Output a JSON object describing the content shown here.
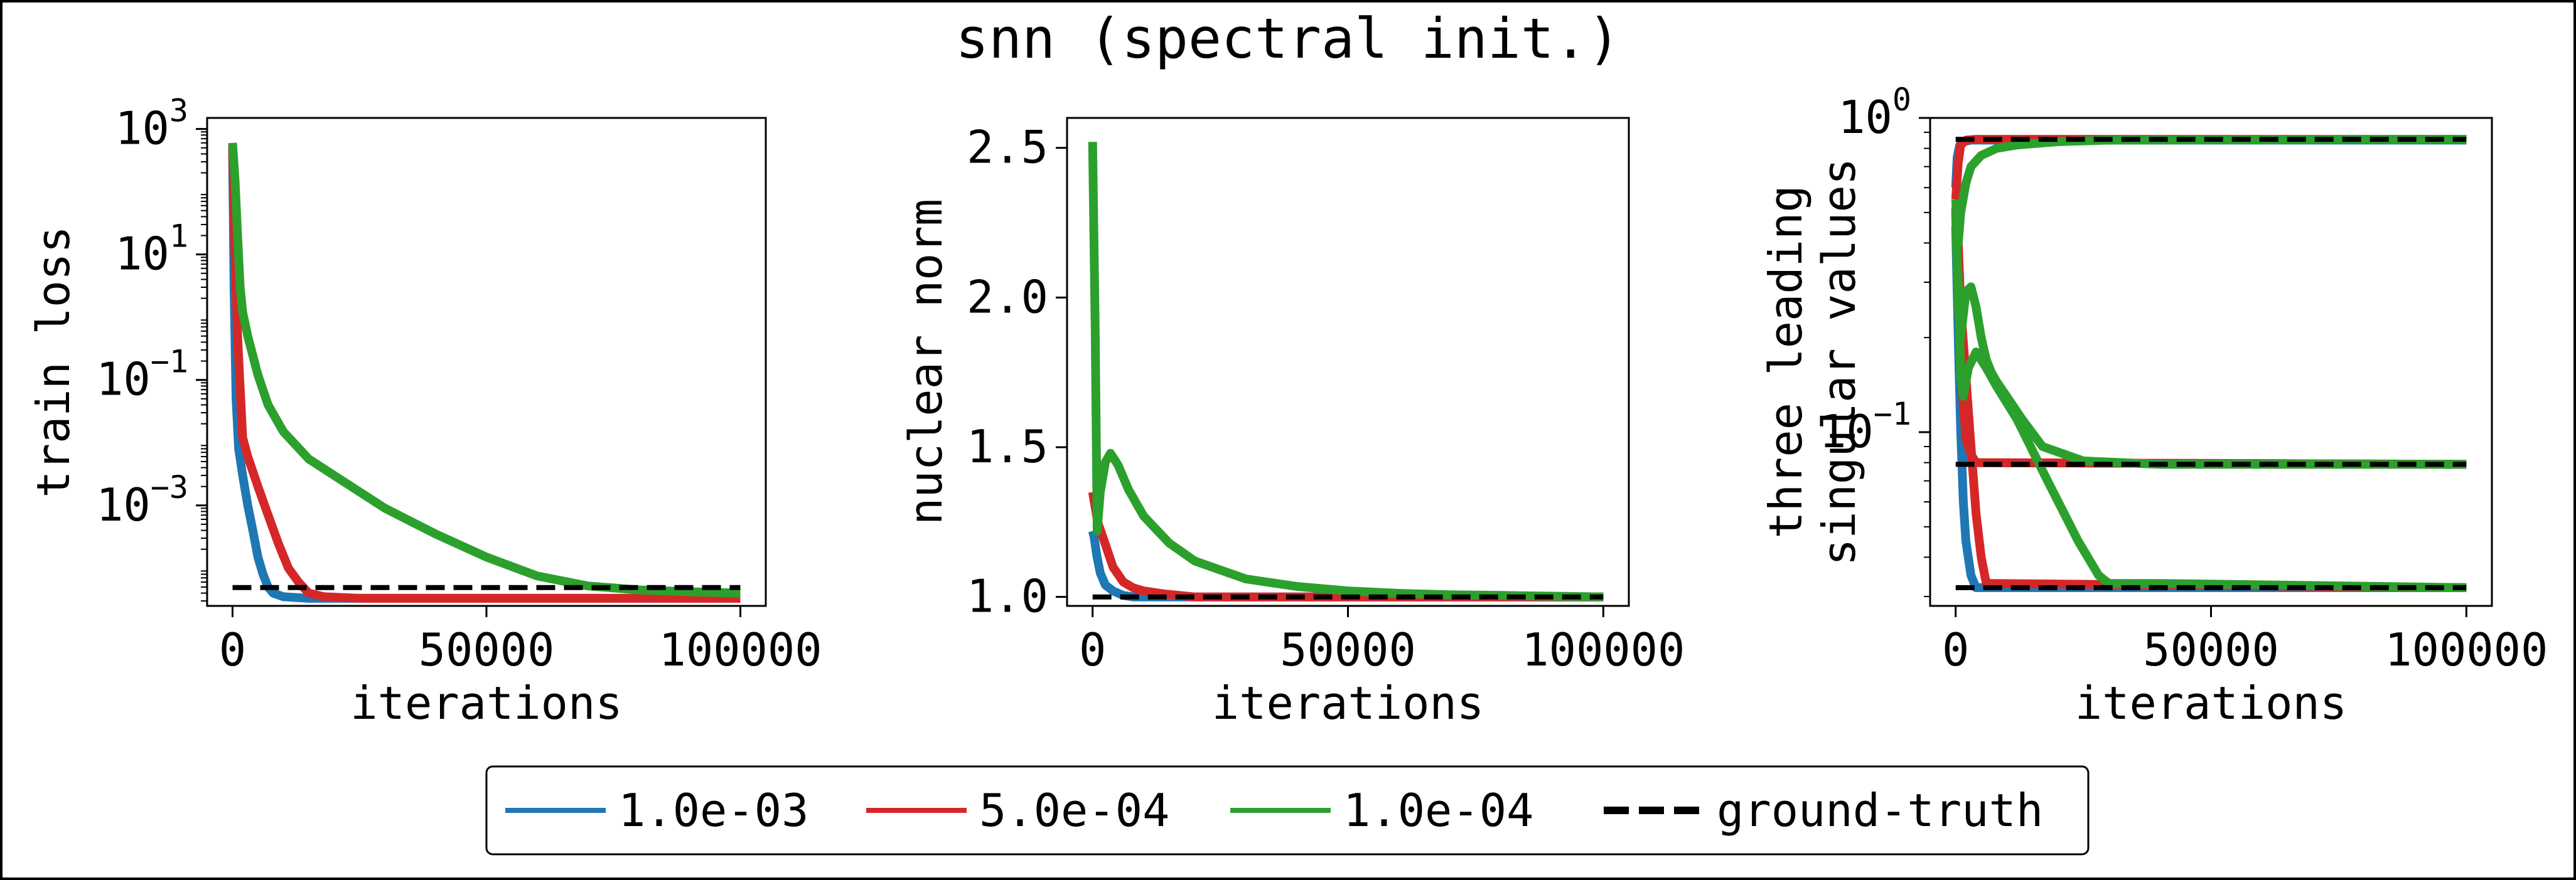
{
  "figure": {
    "title": "snn (spectral init.)"
  },
  "colors": {
    "lr_1e-3": "#1f77b4",
    "lr_5e-4": "#d62728",
    "lr_1e-4": "#2ca02c",
    "ground_truth": "#000000"
  },
  "legend": {
    "placement": "bottom-center",
    "entries": [
      {
        "label": "1.0e-03",
        "color": "#1f77b4",
        "style": "solid"
      },
      {
        "label": "5.0e-04",
        "color": "#d62728",
        "style": "solid"
      },
      {
        "label": "1.0e-04",
        "color": "#2ca02c",
        "style": "solid"
      },
      {
        "label": "ground-truth",
        "color": "#000000",
        "style": "dashed"
      }
    ]
  },
  "chart_data": [
    {
      "type": "line",
      "xlabel": "iterations",
      "ylabel": "train loss",
      "xlim": [
        -5000,
        105000
      ],
      "ylim": [
        2.5e-05,
        1500
      ],
      "yscale": "log",
      "xticks": [
        0,
        50000,
        100000
      ],
      "xticklabels": [
        "0",
        "50000",
        "100000"
      ],
      "yticks": [
        1000,
        10,
        0.1,
        0.001
      ],
      "yticklabels": [
        [
          "10",
          "3"
        ],
        [
          "10",
          "1"
        ],
        [
          "10",
          "−1"
        ],
        [
          "10",
          "−3"
        ]
      ],
      "grid": false,
      "series": [
        {
          "name": "1.0e-03",
          "color": "#1f77b4",
          "style": "solid",
          "x": [
            0,
            300,
            700,
            1200,
            2000,
            3000,
            4000,
            5000,
            6000,
            7000,
            8000,
            10000,
            15000,
            100000
          ],
          "y": [
            500,
            3,
            0.05,
            0.008,
            0.003,
            0.001,
            0.0004,
            0.00015,
            8e-05,
            5e-05,
            4e-05,
            3.5e-05,
            3.3e-05,
            3.3e-05
          ]
        },
        {
          "name": "5.0e-04",
          "color": "#d62728",
          "style": "solid",
          "x": [
            0,
            500,
            1000,
            2000,
            3000,
            5000,
            7000,
            9000,
            11000,
            13000,
            15000,
            18000,
            25000,
            100000
          ],
          "y": [
            550,
            10,
            0.5,
            0.012,
            0.006,
            0.002,
            0.0007,
            0.00025,
            0.0001,
            6e-05,
            4e-05,
            3.5e-05,
            3.3e-05,
            3.3e-05
          ]
        },
        {
          "name": "1.0e-04",
          "color": "#2ca02c",
          "style": "solid",
          "x": [
            0,
            500,
            1000,
            1500,
            2000,
            3000,
            5000,
            7000,
            10000,
            15000,
            20000,
            30000,
            40000,
            50000,
            60000,
            70000,
            80000,
            90000,
            100000
          ],
          "y": [
            600,
            150,
            20,
            3,
            1.2,
            0.5,
            0.12,
            0.04,
            0.015,
            0.0055,
            0.003,
            0.0009,
            0.00035,
            0.00015,
            7.5e-05,
            5.2e-05,
            4.5e-05,
            4.2e-05,
            4e-05
          ]
        },
        {
          "name": "ground-truth",
          "color": "#000000",
          "style": "dashed",
          "x": [
            0,
            100000
          ],
          "y": [
            4.9e-05,
            4.9e-05
          ]
        }
      ]
    },
    {
      "type": "line",
      "xlabel": "iterations",
      "ylabel": "nuclear norm",
      "xlim": [
        -5000,
        105000
      ],
      "ylim": [
        0.97,
        2.6
      ],
      "yscale": "linear",
      "xticks": [
        0,
        50000,
        100000
      ],
      "xticklabels": [
        "0",
        "50000",
        "100000"
      ],
      "yticks": [
        1.0,
        1.5,
        2.0,
        2.5
      ],
      "yticklabels": [
        "1.0",
        "1.5",
        "2.0",
        "2.5"
      ],
      "grid": false,
      "series": [
        {
          "name": "1.0e-03",
          "color": "#1f77b4",
          "style": "solid",
          "x": [
            0,
            300,
            800,
            1500,
            2500,
            4000,
            6000,
            8000,
            100000
          ],
          "y": [
            1.22,
            1.2,
            1.14,
            1.08,
            1.04,
            1.02,
            1.005,
            1.0,
            1.0
          ]
        },
        {
          "name": "5.0e-04",
          "color": "#d62728",
          "style": "solid",
          "x": [
            0,
            500,
            1000,
            2000,
            3000,
            4000,
            6000,
            8000,
            10000,
            14000,
            20000,
            100000
          ],
          "y": [
            1.35,
            1.3,
            1.25,
            1.2,
            1.15,
            1.1,
            1.05,
            1.03,
            1.02,
            1.01,
            1.0,
            1.0
          ]
        },
        {
          "name": "1.0e-04",
          "color": "#2ca02c",
          "style": "solid",
          "x": [
            0,
            500,
            900,
            1500,
            2500,
            3500,
            5000,
            7000,
            10000,
            15000,
            20000,
            30000,
            40000,
            50000,
            60000,
            70000,
            80000,
            100000
          ],
          "y": [
            2.52,
            1.9,
            1.22,
            1.35,
            1.45,
            1.48,
            1.44,
            1.36,
            1.27,
            1.18,
            1.12,
            1.06,
            1.035,
            1.02,
            1.012,
            1.007,
            1.005,
            1.0
          ]
        },
        {
          "name": "ground-truth",
          "color": "#000000",
          "style": "dashed",
          "x": [
            0,
            100000
          ],
          "y": [
            1.0,
            1.0
          ]
        }
      ]
    },
    {
      "type": "line",
      "xlabel": "iterations",
      "ylabel": [
        "three leading",
        "singular values"
      ],
      "xlim": [
        -5000,
        105000
      ],
      "ylim": [
        0.028,
        1.0
      ],
      "yscale": "log",
      "xticks": [
        0,
        50000,
        100000
      ],
      "xticklabels": [
        "0",
        "50000",
        "100000"
      ],
      "yticks": [
        1,
        0.1
      ],
      "yticklabels": [
        [
          "10",
          "0"
        ],
        [
          "10",
          "−1"
        ]
      ],
      "grid": false,
      "series": [
        {
          "name": "1.0e-03",
          "color": "#1f77b4",
          "style": "solid",
          "group": "sv1",
          "x": [
            0,
            300,
            800,
            1500,
            3000,
            100000
          ],
          "y": [
            0.6,
            0.75,
            0.82,
            0.84,
            0.85,
            0.85
          ]
        },
        {
          "name": "1.0e-03",
          "color": "#1f77b4",
          "style": "solid",
          "group": "sv2",
          "x": [
            0,
            500,
            1000,
            1500,
            2000,
            3000,
            100000
          ],
          "y": [
            0.5,
            0.25,
            0.13,
            0.095,
            0.085,
            0.08,
            0.079
          ]
        },
        {
          "name": "1.0e-03",
          "color": "#1f77b4",
          "style": "solid",
          "group": "sv3",
          "x": [
            0,
            500,
            1000,
            1500,
            2000,
            3000,
            4000,
            100000
          ],
          "y": [
            0.45,
            0.2,
            0.1,
            0.06,
            0.045,
            0.035,
            0.032,
            0.032
          ]
        },
        {
          "name": "5.0e-04",
          "color": "#d62728",
          "style": "solid",
          "group": "sv1",
          "x": [
            0,
            500,
            1000,
            2000,
            4000,
            100000
          ],
          "y": [
            0.55,
            0.72,
            0.82,
            0.85,
            0.855,
            0.855
          ]
        },
        {
          "name": "5.0e-04",
          "color": "#d62728",
          "style": "solid",
          "group": "sv2",
          "x": [
            0,
            500,
            1000,
            2000,
            3000,
            4000,
            100000
          ],
          "y": [
            0.52,
            0.3,
            0.16,
            0.095,
            0.085,
            0.08,
            0.079
          ]
        },
        {
          "name": "5.0e-04",
          "color": "#d62728",
          "style": "solid",
          "group": "sv3",
          "x": [
            0,
            500,
            1000,
            2000,
            3000,
            4000,
            5000,
            6000,
            100000
          ],
          "y": [
            0.5,
            0.4,
            0.25,
            0.15,
            0.09,
            0.055,
            0.04,
            0.033,
            0.032
          ]
        },
        {
          "name": "1.0e-04",
          "color": "#2ca02c",
          "style": "solid",
          "group": "sv1",
          "x": [
            0,
            500,
            1000,
            2000,
            3000,
            5000,
            8000,
            12000,
            20000,
            30000,
            100000
          ],
          "y": [
            0.55,
            0.4,
            0.5,
            0.62,
            0.7,
            0.76,
            0.8,
            0.82,
            0.84,
            0.85,
            0.855
          ]
        },
        {
          "name": "1.0e-04",
          "color": "#2ca02c",
          "style": "solid",
          "group": "sv2",
          "x": [
            0,
            500,
            1000,
            2000,
            3000,
            4000,
            5000,
            6000,
            7000,
            8000,
            10000,
            13000,
            17000,
            25000,
            40000,
            100000
          ],
          "y": [
            0.5,
            0.25,
            0.2,
            0.28,
            0.29,
            0.25,
            0.2,
            0.17,
            0.155,
            0.145,
            0.13,
            0.11,
            0.09,
            0.081,
            0.079,
            0.079
          ]
        },
        {
          "name": "1.0e-04",
          "color": "#2ca02c",
          "style": "solid",
          "group": "sv3",
          "x": [
            0,
            500,
            1000,
            1500,
            2500,
            4000,
            6000,
            8000,
            12000,
            18000,
            24000,
            28000,
            30000,
            40000,
            100000
          ],
          "y": [
            0.45,
            0.3,
            0.15,
            0.13,
            0.16,
            0.18,
            0.16,
            0.14,
            0.11,
            0.07,
            0.045,
            0.035,
            0.033,
            0.033,
            0.032
          ]
        },
        {
          "name": "ground-truth",
          "color": "#000000",
          "style": "dashed",
          "group": "sv1",
          "x": [
            0,
            100000
          ],
          "y": [
            0.855,
            0.855
          ]
        },
        {
          "name": "ground-truth",
          "color": "#000000",
          "style": "dashed",
          "group": "sv2",
          "x": [
            0,
            100000
          ],
          "y": [
            0.079,
            0.079
          ]
        },
        {
          "name": "ground-truth",
          "color": "#000000",
          "style": "dashed",
          "group": "sv3",
          "x": [
            0,
            100000
          ],
          "y": [
            0.032,
            0.032
          ]
        }
      ]
    }
  ]
}
